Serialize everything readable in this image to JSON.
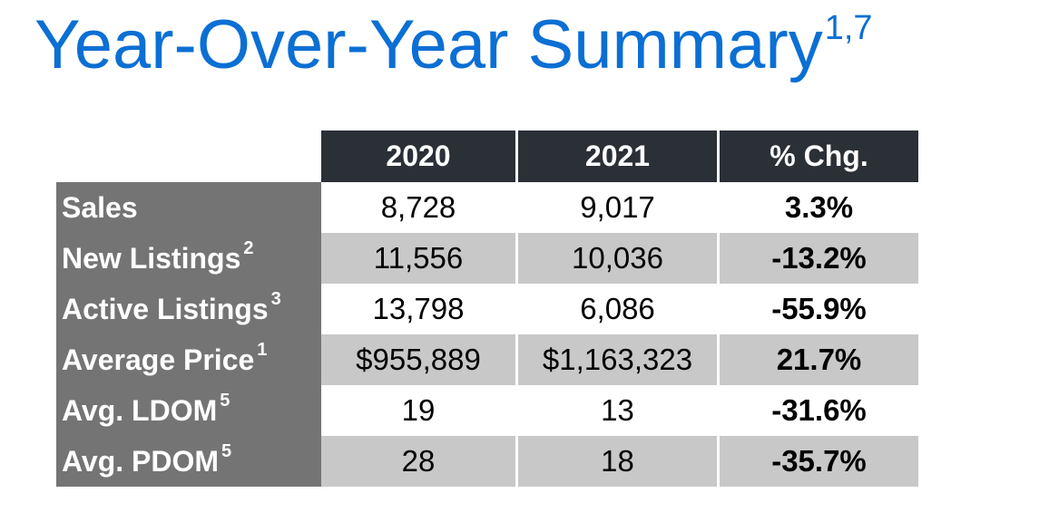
{
  "title": {
    "text": "Year-Over-Year Summary",
    "superscript": "1,7"
  },
  "table": {
    "headers": [
      "2020",
      "2021",
      "% Chg."
    ],
    "rows": [
      {
        "label": "Sales",
        "note": "",
        "v2020": "8,728",
        "v2021": "9,017",
        "chg": "3.3%"
      },
      {
        "label": "New Listings",
        "note": "2",
        "v2020": "11,556",
        "v2021": "10,036",
        "chg": "-13.2%"
      },
      {
        "label": "Active Listings",
        "note": "3",
        "v2020": "13,798",
        "v2021": "6,086",
        "chg": "-55.9%"
      },
      {
        "label": "Average Price",
        "note": "1",
        "v2020": "$955,889",
        "v2021": "$1,163,323",
        "chg": "21.7%"
      },
      {
        "label": "Avg. LDOM",
        "note": "5",
        "v2020": "19",
        "v2021": "13",
        "chg": "-31.6%"
      },
      {
        "label": "Avg. PDOM",
        "note": "5",
        "v2020": "28",
        "v2021": "18",
        "chg": "-35.7%"
      }
    ]
  },
  "colors": {
    "title": "#0b6fd4",
    "header_bg": "#2b2f36",
    "label_bg": "#747474",
    "stripe_bg": "#c8c8c8"
  }
}
